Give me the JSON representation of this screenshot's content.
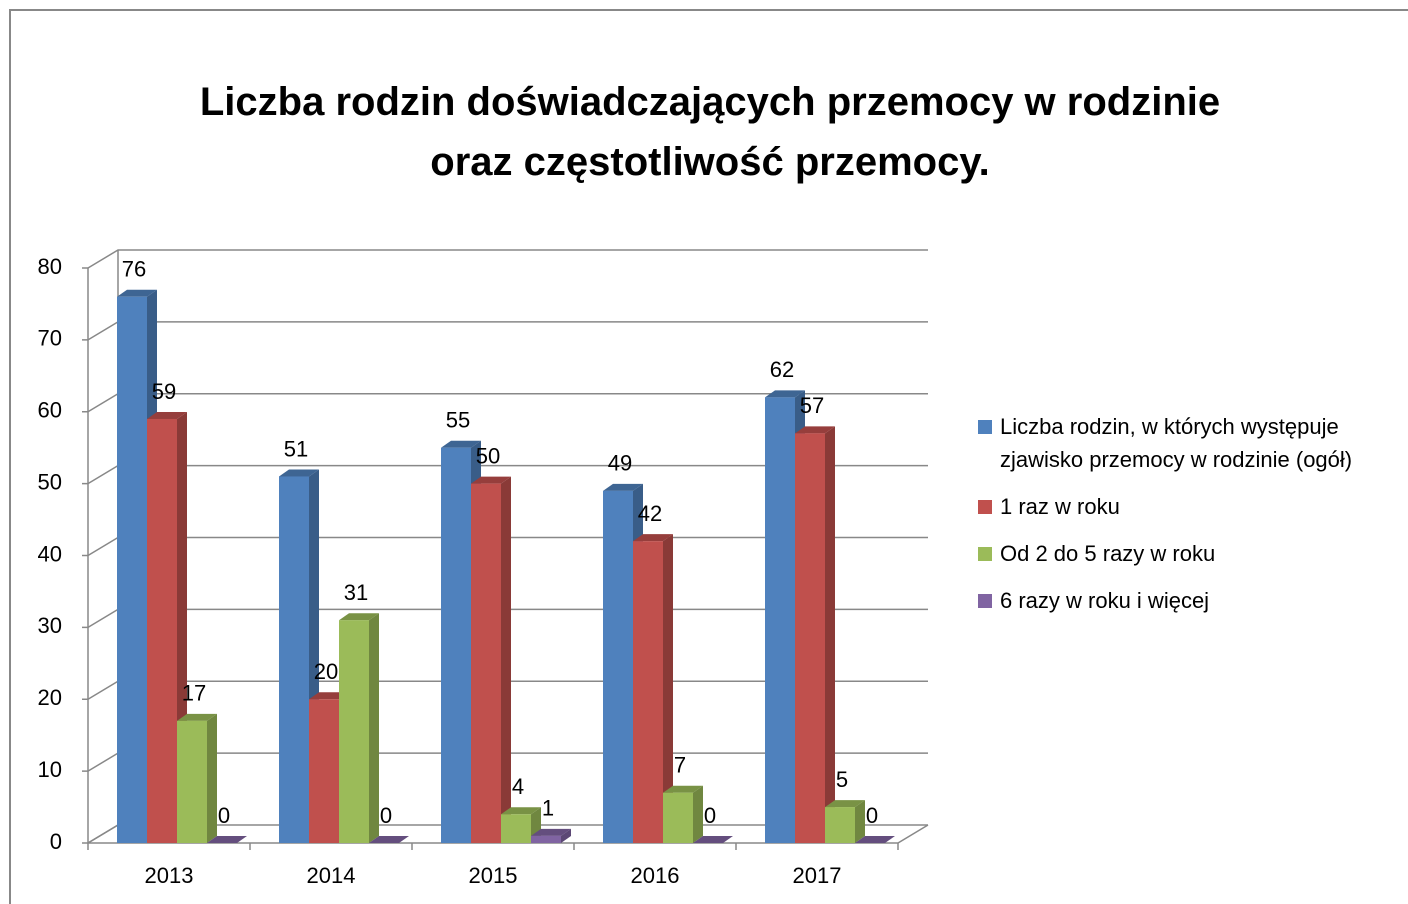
{
  "chart_data": {
    "type": "bar",
    "title": "Liczba rodzin doświadczających przemocy w rodzinie oraz częstotliwość przemocy.",
    "categories": [
      "2013",
      "2014",
      "2015",
      "2016",
      "2017"
    ],
    "series": [
      {
        "name": "Liczba rodzin, w których występuje zjawisko przemocy w rodzinie (ogół)",
        "color": "#4f81bd",
        "values": [
          76,
          51,
          55,
          49,
          62
        ]
      },
      {
        "name": "1 raz w roku",
        "color": "#c0504d",
        "values": [
          59,
          20,
          50,
          42,
          57
        ]
      },
      {
        "name": "Od 2 do 5 razy w roku",
        "color": "#9bbb59",
        "values": [
          17,
          31,
          4,
          7,
          5
        ]
      },
      {
        "name": "6 razy w roku i więcej",
        "color": "#8064a2",
        "values": [
          0,
          0,
          1,
          0,
          0
        ]
      }
    ],
    "ylim": [
      0,
      80
    ],
    "yticks": [
      0,
      10,
      20,
      30,
      40,
      50,
      60,
      70,
      80
    ],
    "grid": true,
    "legend": "right"
  }
}
